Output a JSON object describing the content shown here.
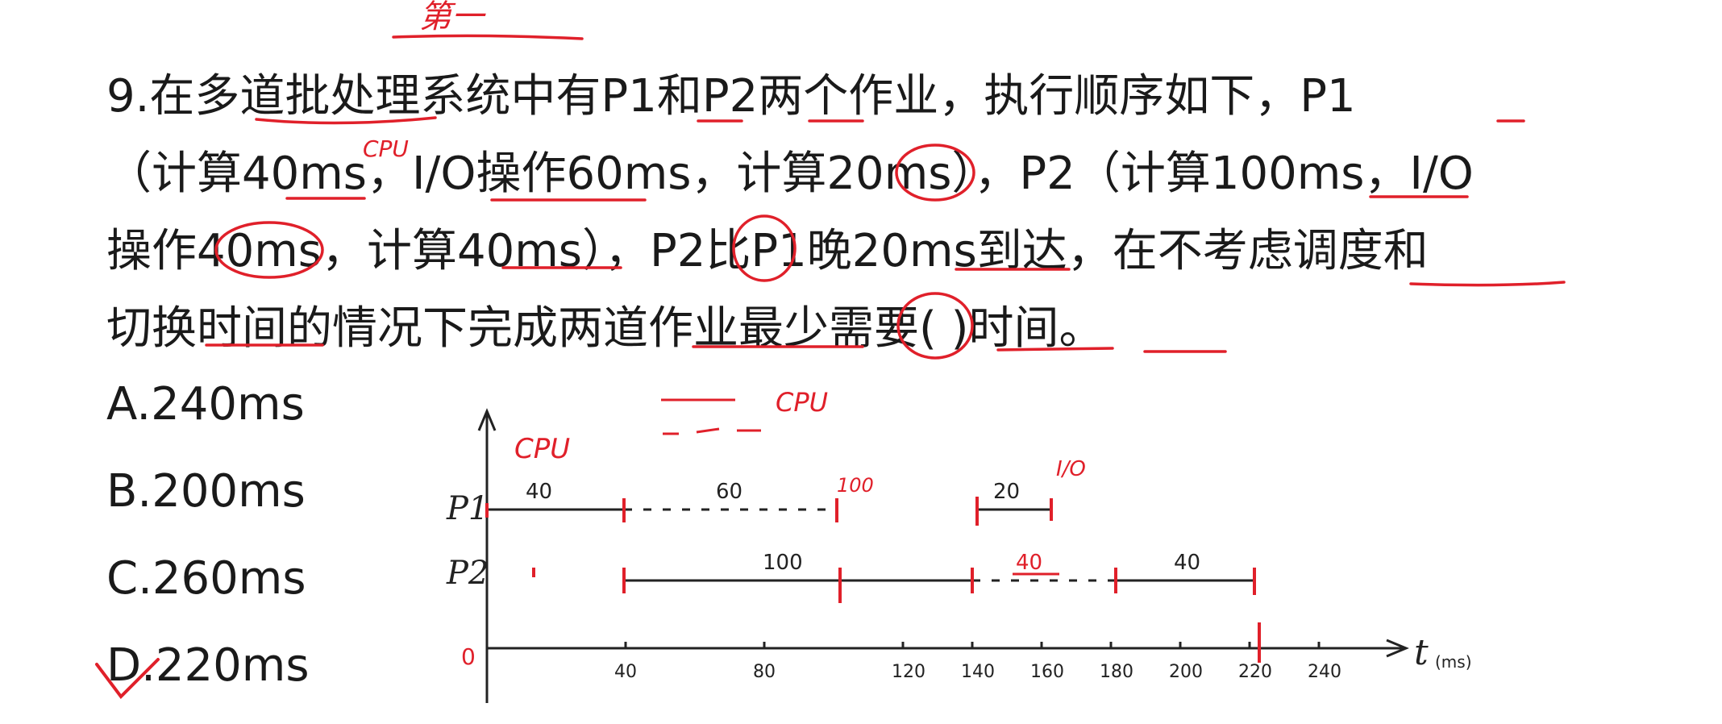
{
  "question": {
    "lines": [
      "9.在多道批处理系统中有P1和P2两个作业，执行顺序如下，P1",
      "（计算40ms，I/O操作60ms，计算20ms），P2（计算100ms，I/O",
      "操作40ms，计算40ms），P2比P1晚20ms到达，在不考虑调度和",
      "切换时间的情况下完成两道作业最少需要(  )时间。"
    ]
  },
  "options": [
    {
      "label": "A.240ms"
    },
    {
      "label": "B.200ms"
    },
    {
      "label": "C.260ms"
    },
    {
      "label": "D.220ms"
    }
  ],
  "timeline": {
    "row_labels": [
      "P1",
      "P2"
    ],
    "origin_label": "0",
    "axis_label": "t",
    "axis_unit": "(ms)",
    "ticks": [
      "40",
      "80",
      "120",
      "140",
      "160",
      "180",
      "200",
      "220",
      "240"
    ],
    "p1_segments": [
      {
        "label": "40",
        "start": 0,
        "end": 40,
        "style": "solid"
      },
      {
        "label": "60",
        "start": 40,
        "end": 100,
        "style": "dashed"
      },
      {
        "label": "20",
        "start": 140,
        "end": 160,
        "style": "solid"
      }
    ],
    "p2_segments": [
      {
        "label": "100",
        "start": 40,
        "end": 140,
        "style": "solid"
      },
      {
        "label": "40",
        "start": 140,
        "end": 180,
        "style": "dashed"
      },
      {
        "label": "40",
        "start": 180,
        "end": 220,
        "style": "solid"
      }
    ],
    "legend_text": "CPU",
    "annotation_p1_cpu": "CPU",
    "annotation_p1_end": "100",
    "annotation_io": "I/O",
    "annotation_top": "第一",
    "annotation_q_cpu": "CPU"
  },
  "colors": {
    "text": "#1a1a1a",
    "ink": "#222222",
    "annotation_red": "#e0202a"
  }
}
